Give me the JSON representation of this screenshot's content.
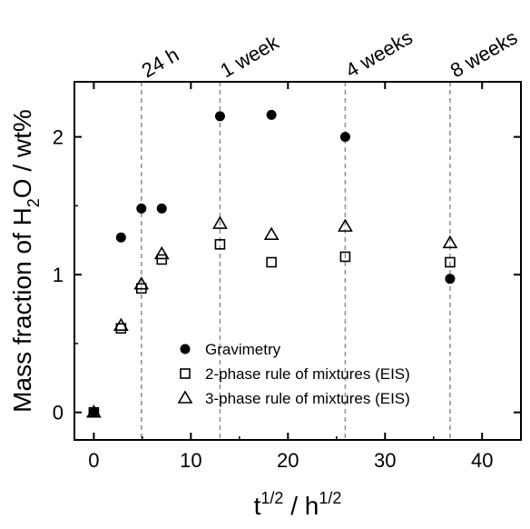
{
  "chart_data": {
    "type": "scatter",
    "xlabel_base": "t",
    "xlabel_sup1": "1/2",
    "xlabel_mid": " / h",
    "xlabel_sup2": "1/2",
    "ylabel_pre": "Mass fraction of H",
    "ylabel_sub": "2",
    "ylabel_post": "O / wt%",
    "xlim": [
      -2,
      44
    ],
    "ylim": [
      -0.2,
      2.4
    ],
    "xticks": [
      0,
      10,
      20,
      30,
      40
    ],
    "yticks": [
      0,
      1,
      2
    ],
    "xtick_labels": [
      "0",
      "10",
      "20",
      "30",
      "40"
    ],
    "ytick_labels": [
      "0",
      "1",
      "2"
    ],
    "time_markers": [
      {
        "label": "24 h",
        "x": 4.9
      },
      {
        "label": "1 week",
        "x": 13.0
      },
      {
        "label": "4 weeks",
        "x": 25.9
      },
      {
        "label": "8 weeks",
        "x": 36.7
      }
    ],
    "series": [
      {
        "name": "Gravimetry",
        "marker": "circle-filled",
        "x": [
          0,
          2.8,
          4.9,
          7.0,
          13.0,
          18.3,
          25.9,
          36.7
        ],
        "y": [
          0.0,
          1.27,
          1.48,
          1.48,
          2.15,
          2.16,
          2.0,
          0.97
        ]
      },
      {
        "name": "2-phase rule of mixtures (EIS)",
        "marker": "square-open",
        "x": [
          0,
          2.8,
          4.9,
          7.0,
          13.0,
          18.3,
          25.9,
          36.7
        ],
        "y": [
          0.0,
          0.61,
          0.9,
          1.11,
          1.22,
          1.09,
          1.13,
          1.09
        ]
      },
      {
        "name": "3-phase rule of mixtures (EIS)",
        "marker": "triangle-open",
        "x": [
          0,
          2.8,
          4.9,
          7.0,
          13.0,
          18.3,
          25.9,
          36.7
        ],
        "y": [
          0.0,
          0.63,
          0.93,
          1.15,
          1.37,
          1.29,
          1.35,
          1.23
        ]
      }
    ],
    "legend_position": "lower-right",
    "grid": false
  }
}
